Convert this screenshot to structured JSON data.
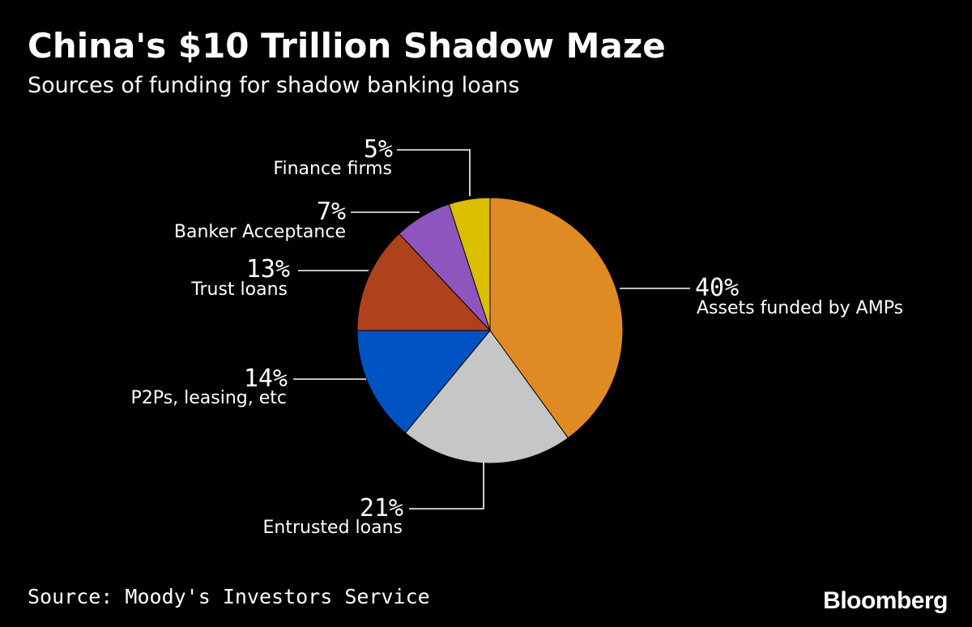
{
  "header": {
    "title": "China's $10 Trillion Shadow Maze",
    "subtitle": "Sources of funding for shadow banking loans"
  },
  "footer": {
    "source": "Source: Moody's Investors Service",
    "logo": "Bloomberg"
  },
  "chart_data": {
    "type": "pie",
    "title": "China's $10 Trillion Shadow Maze",
    "subtitle": "Sources of funding for shadow banking loans",
    "unit": "%",
    "slices": [
      {
        "label": "Assets funded by AMPs",
        "value": 40,
        "display": "40%",
        "color": "#E08A24"
      },
      {
        "label": "Entrusted loans",
        "value": 21,
        "display": "21%",
        "color": "#C6C6C6"
      },
      {
        "label": "P2Ps, leasing, etc",
        "value": 14,
        "display": "14%",
        "color": "#0052C2"
      },
      {
        "label": "Trust loans",
        "value": 13,
        "display": "13%",
        "color": "#B0411D"
      },
      {
        "label": "Banker Acceptance",
        "value": 7,
        "display": "7%",
        "color": "#8E56BC"
      },
      {
        "label": "Finance firms",
        "value": 5,
        "display": "5%",
        "color": "#DBBE00"
      }
    ],
    "start_angle": "12 o'clock",
    "direction": "clockwise",
    "legend": "none",
    "labels": "outside with leader lines"
  }
}
